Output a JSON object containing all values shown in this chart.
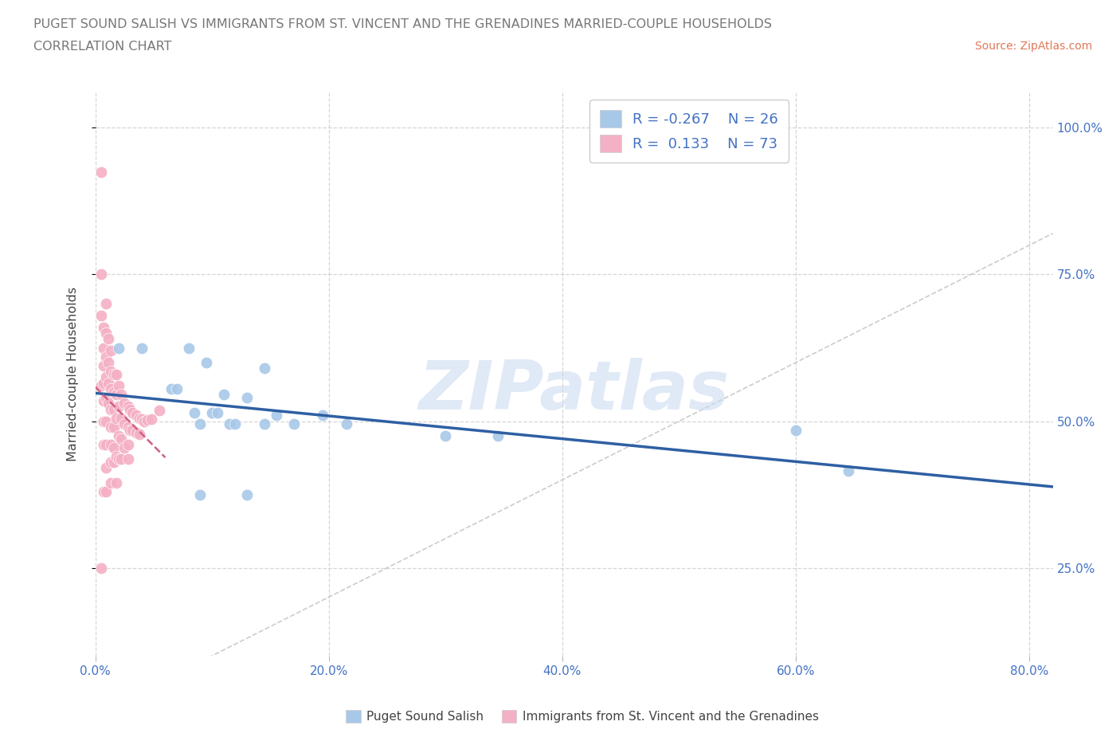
{
  "title_line1": "PUGET SOUND SALISH VS IMMIGRANTS FROM ST. VINCENT AND THE GRENADINES MARRIED-COUPLE HOUSEHOLDS",
  "title_line2": "CORRELATION CHART",
  "source_text": "Source: ZipAtlas.com",
  "ylabel": "Married-couple Households",
  "xmin": 0.0,
  "xmax": 0.82,
  "ymin": 0.1,
  "ymax": 1.06,
  "ytick_labels": [
    "25.0%",
    "50.0%",
    "75.0%",
    "100.0%"
  ],
  "ytick_values": [
    0.25,
    0.5,
    0.75,
    1.0
  ],
  "xtick_labels": [
    "0.0%",
    "20.0%",
    "40.0%",
    "60.0%",
    "80.0%"
  ],
  "xtick_values": [
    0.0,
    0.2,
    0.4,
    0.6,
    0.8
  ],
  "blue_scatter_color": "#a8c8e8",
  "pink_scatter_color": "#f4b0c4",
  "blue_line_color": "#2e5fa3",
  "pink_line_color": "#d06080",
  "diagonal_color": "#cccccc",
  "legend_blue_R": "-0.267",
  "legend_blue_N": "26",
  "legend_pink_R": "0.133",
  "legend_pink_N": "73",
  "legend_label_blue": "Puget Sound Salish",
  "legend_label_pink": "Immigrants from St. Vincent and the Grenadines",
  "watermark": "ZIPatlas",
  "title_color": "#777777",
  "tick_color": "#4472c4",
  "ylabel_color": "#444444",
  "source_color": "#e07858",
  "blue_x": [
    0.02,
    0.04,
    0.065,
    0.07,
    0.08,
    0.085,
    0.09,
    0.095,
    0.1,
    0.105,
    0.11,
    0.115,
    0.12,
    0.13,
    0.145,
    0.155,
    0.17,
    0.195,
    0.215,
    0.3,
    0.345,
    0.6,
    0.645,
    0.09,
    0.13,
    0.145
  ],
  "blue_y": [
    0.625,
    0.625,
    0.555,
    0.555,
    0.625,
    0.515,
    0.495,
    0.6,
    0.515,
    0.515,
    0.545,
    0.495,
    0.495,
    0.54,
    0.495,
    0.51,
    0.495,
    0.51,
    0.495,
    0.475,
    0.475,
    0.485,
    0.415,
    0.375,
    0.375,
    0.59
  ],
  "pink_x": [
    0.005,
    0.005,
    0.005,
    0.005,
    0.005,
    0.007,
    0.007,
    0.007,
    0.007,
    0.007,
    0.007,
    0.007,
    0.007,
    0.009,
    0.009,
    0.009,
    0.009,
    0.009,
    0.009,
    0.009,
    0.009,
    0.009,
    0.011,
    0.011,
    0.011,
    0.011,
    0.013,
    0.013,
    0.013,
    0.013,
    0.013,
    0.013,
    0.013,
    0.013,
    0.016,
    0.016,
    0.016,
    0.016,
    0.016,
    0.016,
    0.018,
    0.018,
    0.018,
    0.018,
    0.018,
    0.02,
    0.02,
    0.02,
    0.02,
    0.022,
    0.022,
    0.022,
    0.022,
    0.025,
    0.025,
    0.025,
    0.028,
    0.028,
    0.028,
    0.028,
    0.03,
    0.03,
    0.032,
    0.032,
    0.035,
    0.035,
    0.038,
    0.038,
    0.04,
    0.042,
    0.045,
    0.048,
    0.055
  ],
  "pink_y": [
    0.925,
    0.75,
    0.68,
    0.56,
    0.25,
    0.66,
    0.625,
    0.595,
    0.565,
    0.535,
    0.5,
    0.46,
    0.38,
    0.7,
    0.65,
    0.61,
    0.575,
    0.54,
    0.5,
    0.46,
    0.42,
    0.38,
    0.64,
    0.6,
    0.565,
    0.53,
    0.62,
    0.585,
    0.555,
    0.52,
    0.49,
    0.46,
    0.43,
    0.395,
    0.58,
    0.55,
    0.52,
    0.49,
    0.455,
    0.43,
    0.58,
    0.545,
    0.505,
    0.44,
    0.395,
    0.56,
    0.525,
    0.475,
    0.435,
    0.545,
    0.505,
    0.47,
    0.435,
    0.53,
    0.495,
    0.455,
    0.525,
    0.49,
    0.46,
    0.435,
    0.52,
    0.485,
    0.515,
    0.485,
    0.51,
    0.48,
    0.505,
    0.478,
    0.503,
    0.5,
    0.502,
    0.504,
    0.518
  ]
}
